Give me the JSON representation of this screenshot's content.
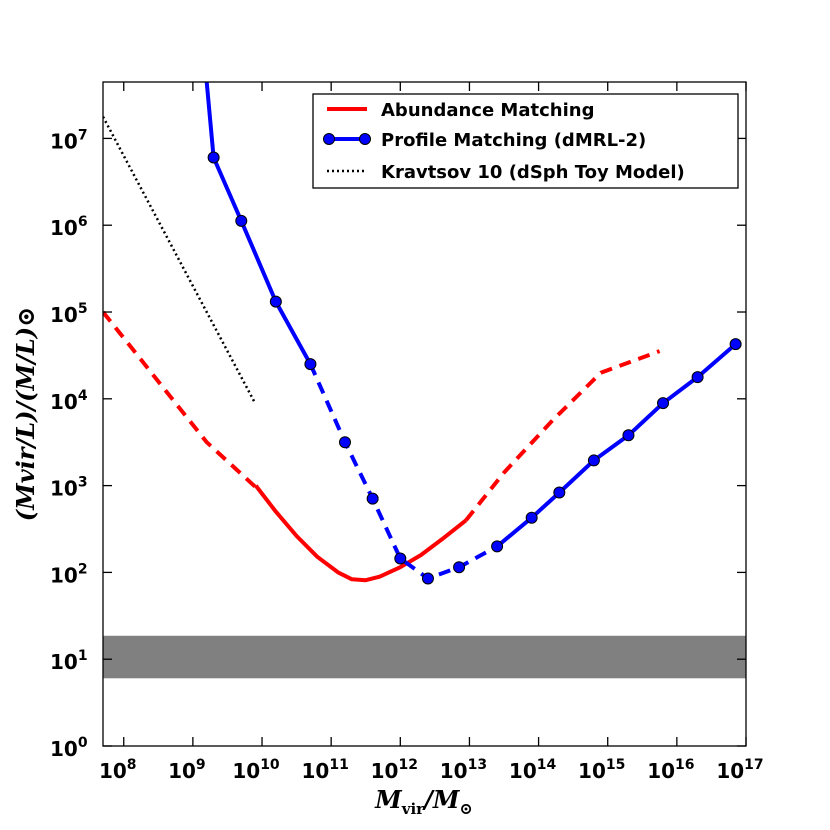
{
  "chart_data": {
    "type": "line",
    "xscale": "log",
    "yscale": "log",
    "xlim_log10": [
      7.7,
      17
    ],
    "ylim_log10": [
      0,
      7.65
    ],
    "xlabel": {
      "main": "M",
      "sub": "vir",
      "rest": "/M",
      "sub2": "⊙"
    },
    "ylabel": {
      "text": "(Mvir/L)/(M/L)⊙"
    },
    "x_ticks": [
      {
        "exp": 8,
        "label_base": "10",
        "label_exp": "8"
      },
      {
        "exp": 9,
        "label_base": "10",
        "label_exp": "9"
      },
      {
        "exp": 10,
        "label_base": "10",
        "label_exp": "10"
      },
      {
        "exp": 11,
        "label_base": "10",
        "label_exp": "11"
      },
      {
        "exp": 12,
        "label_base": "10",
        "label_exp": "12"
      },
      {
        "exp": 13,
        "label_base": "10",
        "label_exp": "13"
      },
      {
        "exp": 14,
        "label_base": "10",
        "label_exp": "14"
      },
      {
        "exp": 15,
        "label_base": "10",
        "label_exp": "15"
      },
      {
        "exp": 16,
        "label_base": "10",
        "label_exp": "16"
      },
      {
        "exp": 17,
        "label_base": "10",
        "label_exp": "17"
      }
    ],
    "y_ticks": [
      {
        "exp": 0,
        "label_base": "10",
        "label_exp": "0"
      },
      {
        "exp": 1,
        "label_base": "10",
        "label_exp": "1"
      },
      {
        "exp": 2,
        "label_base": "10",
        "label_exp": "2"
      },
      {
        "exp": 3,
        "label_base": "10",
        "label_exp": "3"
      },
      {
        "exp": 4,
        "label_base": "10",
        "label_exp": "4"
      },
      {
        "exp": 5,
        "label_base": "10",
        "label_exp": "5"
      },
      {
        "exp": 6,
        "label_base": "10",
        "label_exp": "6"
      },
      {
        "exp": 7,
        "label_base": "10",
        "label_exp": "7"
      }
    ],
    "band": {
      "log_y_min": 0.78,
      "log_y_max": 1.27,
      "color": "#808080"
    },
    "series": [
      {
        "name": "Abundance Matching",
        "color": "#ff0000",
        "segments": [
          {
            "style": "dashed",
            "points_log": [
              [
                7.7,
                5.0
              ],
              [
                8.2,
                4.5
              ],
              [
                8.7,
                4.0
              ],
              [
                9.2,
                3.5
              ],
              [
                9.91,
                2.98
              ]
            ]
          },
          {
            "style": "solid",
            "points_log": [
              [
                9.91,
                3.0
              ],
              [
                10.2,
                2.7
              ],
              [
                10.5,
                2.42
              ],
              [
                10.8,
                2.18
              ],
              [
                11.1,
                2.0
              ],
              [
                11.3,
                1.92
              ],
              [
                11.5,
                1.91
              ],
              [
                11.7,
                1.95
              ],
              [
                12.0,
                2.06
              ],
              [
                12.3,
                2.2
              ],
              [
                12.6,
                2.38
              ],
              [
                12.95,
                2.6
              ]
            ]
          },
          {
            "style": "dashed",
            "points_log": [
              [
                12.95,
                2.6
              ],
              [
                13.5,
                3.15
              ],
              [
                14.2,
                3.75
              ],
              [
                14.9,
                4.3
              ],
              [
                15.75,
                4.55
              ]
            ]
          }
        ]
      },
      {
        "name": "Profile Matching (dMRL-2)",
        "color": "#0000ff",
        "marker_color": "#0000ff",
        "segments": [
          {
            "style": "solid",
            "points_log": [
              [
                9.2,
                7.65
              ],
              [
                9.3,
                6.78
              ],
              [
                9.7,
                6.05
              ],
              [
                10.2,
                5.12
              ],
              [
                10.7,
                4.4
              ]
            ]
          },
          {
            "style": "dashed",
            "points_log": [
              [
                10.7,
                4.4
              ],
              [
                11.2,
                3.5
              ],
              [
                11.6,
                2.85
              ],
              [
                12.0,
                2.16
              ],
              [
                12.4,
                1.93
              ],
              [
                12.85,
                2.06
              ],
              [
                13.4,
                2.3
              ]
            ]
          },
          {
            "style": "solid",
            "points_log": [
              [
                13.4,
                2.3
              ],
              [
                13.9,
                2.63
              ],
              [
                14.3,
                2.92
              ],
              [
                14.8,
                3.29
              ],
              [
                15.3,
                3.58
              ],
              [
                15.8,
                3.95
              ],
              [
                16.3,
                4.25
              ],
              [
                16.85,
                4.63
              ]
            ]
          }
        ],
        "markers_log": [
          [
            9.3,
            6.78
          ],
          [
            9.7,
            6.05
          ],
          [
            10.2,
            5.12
          ],
          [
            10.7,
            4.4
          ],
          [
            11.2,
            3.5
          ],
          [
            11.6,
            2.85
          ],
          [
            12.0,
            2.16
          ],
          [
            12.4,
            1.93
          ],
          [
            12.85,
            2.06
          ],
          [
            13.4,
            2.3
          ],
          [
            13.9,
            2.63
          ],
          [
            14.3,
            2.92
          ],
          [
            14.8,
            3.29
          ],
          [
            15.3,
            3.58
          ],
          [
            15.8,
            3.95
          ],
          [
            16.3,
            4.25
          ],
          [
            16.85,
            4.63
          ]
        ]
      },
      {
        "name": "Kravtsov 10 (dSph Toy Model)",
        "color": "#000000",
        "segments": [
          {
            "style": "dotted",
            "points_log": [
              [
                7.7,
                7.25
              ],
              [
                9.9,
                3.95
              ]
            ]
          }
        ]
      }
    ],
    "legend": {
      "placement": "top-right",
      "entries": [
        {
          "label": "Abundance Matching",
          "color": "#ff0000",
          "style": "solid",
          "marker": false
        },
        {
          "label": "Profile Matching (dMRL-2)",
          "color": "#0000ff",
          "style": "solid",
          "marker": true
        },
        {
          "label": "Kravtsov 10 (dSph Toy Model)",
          "color": "#000000",
          "style": "dotted",
          "marker": false
        }
      ]
    }
  }
}
